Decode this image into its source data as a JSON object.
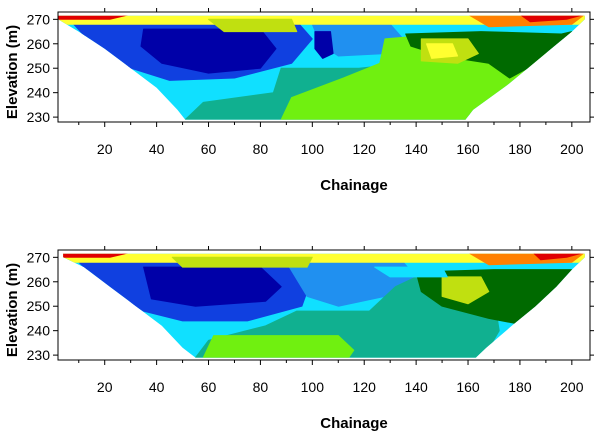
{
  "chart_data": [
    {
      "type": "heatmap",
      "title": "",
      "xlabel": "Chainage",
      "ylabel": "Elevation (m)",
      "xlim": [
        2,
        207
      ],
      "ylim": [
        228,
        273
      ],
      "x_ticks": [
        20,
        40,
        60,
        80,
        100,
        120,
        140,
        160,
        180,
        200
      ],
      "y_ticks": [
        230,
        240,
        250,
        260,
        270
      ],
      "section_outline": {
        "surface": [
          [
            2,
            271.5
          ],
          [
            205,
            271.5
          ]
        ],
        "bottom": [
          [
            2,
            270
          ],
          [
            10,
            265
          ],
          [
            20,
            258
          ],
          [
            30,
            250
          ],
          [
            40,
            242
          ],
          [
            48,
            233
          ],
          [
            51,
            229
          ],
          [
            159,
            229
          ],
          [
            162,
            233
          ],
          [
            175,
            243
          ],
          [
            183,
            250
          ],
          [
            192,
            258
          ],
          [
            200,
            265
          ],
          [
            205,
            270
          ]
        ]
      },
      "colorscale": [
        "#0000a8",
        "#1040e0",
        "#2090f0",
        "#10e0ff",
        "#10b090",
        "#70f010",
        "#006a00",
        "#c0e010",
        "#ffff30",
        "#ff8000",
        "#e00000"
      ],
      "zones": [
        {
          "color": "#10e0ff",
          "polygon": [
            [
              2,
              271
            ],
            [
              205,
              271
            ],
            [
              205,
              262
            ],
            [
              2,
              262
            ]
          ]
        },
        {
          "color": "#1040e0",
          "polygon": [
            [
              8,
              268
            ],
            [
              95,
              268
            ],
            [
              100,
              262
            ],
            [
              92,
              252
            ],
            [
              70,
              246
            ],
            [
              45,
              245
            ],
            [
              30,
              250
            ],
            [
              15,
              260
            ]
          ]
        },
        {
          "color": "#0000a8",
          "polygon": [
            [
              35,
              266
            ],
            [
              80,
              266
            ],
            [
              86,
              258
            ],
            [
              80,
              250
            ],
            [
              60,
              248
            ],
            [
              42,
              252
            ],
            [
              34,
              259
            ]
          ]
        },
        {
          "color": "#2090f0",
          "polygon": [
            [
              100,
              268
            ],
            [
              130,
              268
            ],
            [
              135,
              262
            ],
            [
              128,
              256
            ],
            [
              110,
              255
            ],
            [
              103,
              260
            ]
          ]
        },
        {
          "color": "#0000a8",
          "polygon": [
            [
              101,
              265
            ],
            [
              107,
              265
            ],
            [
              108,
              256
            ],
            [
              104,
              254
            ],
            [
              101,
              258
            ]
          ]
        },
        {
          "color": "#10b090",
          "polygon": [
            [
              88,
              250
            ],
            [
              118,
              250
            ],
            [
              136,
              252
            ],
            [
              150,
              246
            ],
            [
              162,
              236
            ],
            [
              160,
              229
            ],
            [
              51,
              229
            ],
            [
              58,
              236
            ],
            [
              85,
              240
            ]
          ]
        },
        {
          "color": "#70f010",
          "polygon": [
            [
              128,
              262
            ],
            [
              150,
              264
            ],
            [
              178,
              262
            ],
            [
              190,
              258
            ],
            [
              190,
              246
            ],
            [
              178,
              238
            ],
            [
              162,
              229
            ],
            [
              88,
              229
            ],
            [
              92,
              238
            ],
            [
              112,
              246
            ],
            [
              126,
              252
            ]
          ]
        },
        {
          "color": "#006a00",
          "polygon": [
            [
              136,
              264
            ],
            [
              165,
              265
            ],
            [
              196,
              264
            ],
            [
              200,
              265
            ],
            [
              192,
              258
            ],
            [
              183,
              250
            ],
            [
              176,
              246
            ],
            [
              168,
              252
            ],
            [
              150,
              255
            ],
            [
              138,
              259
            ]
          ]
        },
        {
          "color": "#c0e010",
          "polygon": [
            [
              142,
              262
            ],
            [
              160,
              262
            ],
            [
              164,
              256
            ],
            [
              156,
              252
            ],
            [
              142,
              253
            ]
          ]
        },
        {
          "color": "#ffff30",
          "polygon": [
            [
              144,
              260
            ],
            [
              154,
              260
            ],
            [
              156,
              255
            ],
            [
              146,
              254
            ]
          ]
        },
        {
          "color": "#ffff30",
          "polygon": [
            [
              2,
              272
            ],
            [
              205,
              272
            ],
            [
              205,
              268
            ],
            [
              2,
              268
            ]
          ]
        },
        {
          "color": "#c0e010",
          "polygon": [
            [
              60,
              270
            ],
            [
              92,
              270
            ],
            [
              94,
              265
            ],
            [
              66,
              265
            ]
          ]
        },
        {
          "color": "#ff8000",
          "polygon": [
            [
              160,
              272
            ],
            [
              205,
              272
            ],
            [
              200,
              268
            ],
            [
              168,
              267
            ]
          ]
        },
        {
          "color": "#e00000",
          "polygon": [
            [
              2,
              272
            ],
            [
              30,
              272
            ],
            [
              22,
              270
            ],
            [
              2,
              270
            ]
          ]
        },
        {
          "color": "#e00000",
          "polygon": [
            [
              180,
              272
            ],
            [
              205,
              272
            ],
            [
              198,
              270
            ],
            [
              184,
              269
            ]
          ]
        }
      ]
    },
    {
      "type": "heatmap",
      "title": "",
      "xlabel": "Chainage",
      "ylabel": "Elevation (m)",
      "xlim": [
        2,
        207
      ],
      "ylim": [
        228,
        273
      ],
      "x_ticks": [
        20,
        40,
        60,
        80,
        100,
        120,
        140,
        160,
        180,
        200
      ],
      "y_ticks": [
        230,
        240,
        250,
        260,
        270
      ],
      "section_outline": {
        "surface": [
          [
            4,
            271.5
          ],
          [
            205,
            271.5
          ]
        ],
        "bottom": [
          [
            4,
            270
          ],
          [
            12,
            266
          ],
          [
            22,
            258
          ],
          [
            32,
            250
          ],
          [
            42,
            242
          ],
          [
            50,
            233
          ],
          [
            55,
            229
          ],
          [
            163,
            229
          ],
          [
            167,
            233
          ],
          [
            178,
            243
          ],
          [
            186,
            250
          ],
          [
            194,
            258
          ],
          [
            200,
            265
          ],
          [
            205,
            270
          ]
        ]
      },
      "colorscale": [
        "#0000a8",
        "#1040e0",
        "#2090f0",
        "#10e0ff",
        "#10b090",
        "#70f010",
        "#006a00",
        "#c0e010",
        "#ffff30",
        "#ff8000",
        "#e00000"
      ],
      "zones": [
        {
          "color": "#10e0ff",
          "polygon": [
            [
              4,
              271
            ],
            [
              205,
              271
            ],
            [
              205,
              262
            ],
            [
              4,
              262
            ]
          ]
        },
        {
          "color": "#1040e0",
          "polygon": [
            [
              10,
              268
            ],
            [
              90,
              268
            ],
            [
              100,
              262
            ],
            [
              96,
              250
            ],
            [
              75,
              244
            ],
            [
              50,
              244
            ],
            [
              35,
              248
            ],
            [
              20,
              258
            ]
          ]
        },
        {
          "color": "#0000a8",
          "polygon": [
            [
              35,
              266
            ],
            [
              80,
              266
            ],
            [
              88,
              258
            ],
            [
              82,
              252
            ],
            [
              55,
              250
            ],
            [
              38,
              253
            ]
          ]
        },
        {
          "color": "#2090f0",
          "polygon": [
            [
              90,
              268
            ],
            [
              135,
              268
            ],
            [
              140,
              262
            ],
            [
              128,
              254
            ],
            [
              110,
              250
            ],
            [
              98,
              254
            ]
          ]
        },
        {
          "color": "#10b090",
          "polygon": [
            [
              94,
              248
            ],
            [
              122,
              248
            ],
            [
              132,
              258
            ],
            [
              140,
              262
            ],
            [
              160,
              262
            ],
            [
              170,
              254
            ],
            [
              172,
              240
            ],
            [
              166,
              229
            ],
            [
              55,
              229
            ],
            [
              60,
              236
            ],
            [
              82,
              242
            ]
          ]
        },
        {
          "color": "#70f010",
          "polygon": [
            [
              62,
              238
            ],
            [
              110,
              238
            ],
            [
              116,
              232
            ],
            [
              114,
              229
            ],
            [
              58,
              229
            ]
          ]
        },
        {
          "color": "#006a00",
          "polygon": [
            [
              140,
              264
            ],
            [
              170,
              265
            ],
            [
              200,
              265
            ],
            [
              194,
              258
            ],
            [
              186,
              250
            ],
            [
              178,
              243
            ],
            [
              168,
              245
            ],
            [
              150,
              250
            ],
            [
              142,
              256
            ]
          ]
        },
        {
          "color": "#c0e010",
          "polygon": [
            [
              150,
              262
            ],
            [
              165,
              262
            ],
            [
              168,
              256
            ],
            [
              160,
              251
            ],
            [
              150,
              254
            ]
          ]
        },
        {
          "color": "#10e0ff",
          "polygon": [
            [
              124,
              266
            ],
            [
              150,
              266
            ],
            [
              152,
              262
            ],
            [
              130,
              262
            ]
          ]
        },
        {
          "color": "#ffff30",
          "polygon": [
            [
              4,
              272
            ],
            [
              205,
              272
            ],
            [
              205,
              268
            ],
            [
              4,
              268
            ]
          ]
        },
        {
          "color": "#c0e010",
          "polygon": [
            [
              46,
              270
            ],
            [
              100,
              270
            ],
            [
              98,
              266
            ],
            [
              50,
              266
            ]
          ]
        },
        {
          "color": "#ff8000",
          "polygon": [
            [
              160,
              272
            ],
            [
              205,
              272
            ],
            [
              200,
              268
            ],
            [
              168,
              267
            ]
          ]
        },
        {
          "color": "#e00000",
          "polygon": [
            [
              4,
              272
            ],
            [
              30,
              272
            ],
            [
              22,
              270
            ],
            [
              4,
              270
            ]
          ]
        },
        {
          "color": "#e00000",
          "polygon": [
            [
              185,
              272
            ],
            [
              205,
              272
            ],
            [
              198,
              270
            ],
            [
              188,
              269
            ]
          ]
        }
      ]
    }
  ]
}
